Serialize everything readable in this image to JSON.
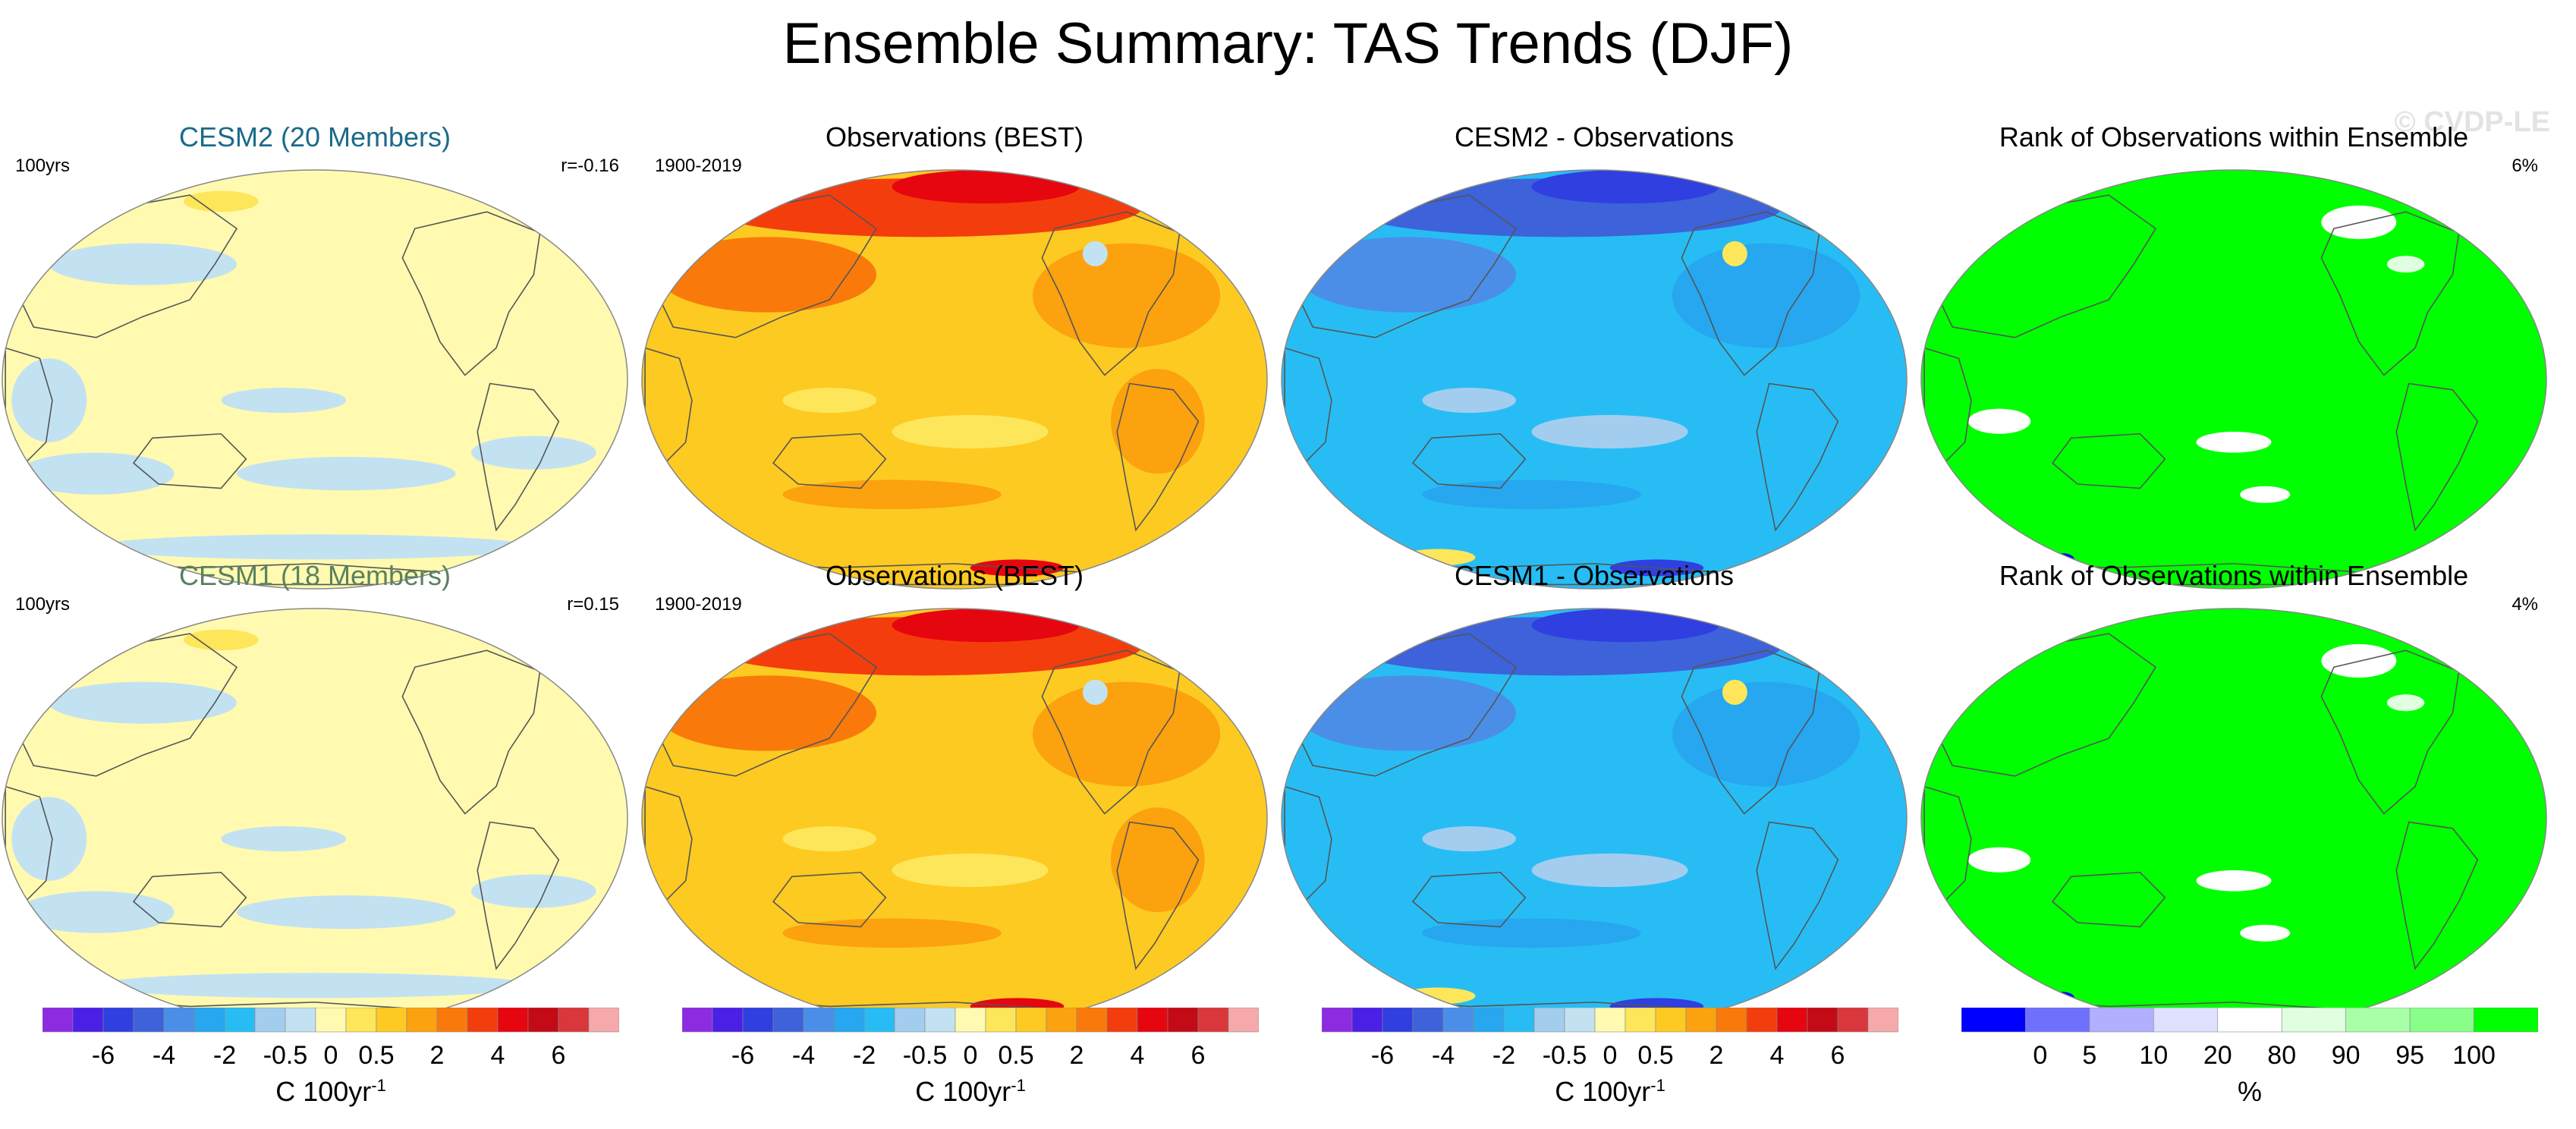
{
  "title": "Ensemble Summary: TAS Trends (DJF)",
  "watermark": "© CVDP-LE",
  "colors": {
    "trend_scale": [
      "#8d2be2",
      "#4a20e6",
      "#2f3fe0",
      "#3d62da",
      "#4b8ee8",
      "#26a7f0",
      "#27bdf4",
      "#a3cdef",
      "#c2e2f2",
      "#fffab0",
      "#fde65a",
      "#fdca22",
      "#fca20e",
      "#f97a0a",
      "#f43d0d",
      "#e6060f",
      "#c30a16",
      "#d9373b",
      "#f6a9ab"
    ],
    "rank_scale": [
      "#0000ff",
      "#7070ff",
      "#b0b0ff",
      "#e0e0ff",
      "#ffffff",
      "#e0ffe0",
      "#a8ffa8",
      "#88ff88",
      "#00ff00"
    ],
    "model_title_cesm2": "#1b6a8a",
    "model_title_cesm1": "#5a8060",
    "coast": "#555555"
  },
  "panels": [
    {
      "title": "CESM2 (20 Members)",
      "left_label": "100yrs",
      "right_label": "r=-0.16",
      "kind": "model",
      "title_color": "#1b6a8a"
    },
    {
      "title": "Observations (BEST)",
      "left_label": "1900-2019",
      "right_label": "",
      "kind": "obs"
    },
    {
      "title": "CESM2 - Observations",
      "left_label": "",
      "right_label": "",
      "kind": "diff"
    },
    {
      "title": "Rank of Observations within Ensemble",
      "left_label": "",
      "right_label": "6%",
      "kind": "rank"
    },
    {
      "title": "CESM1 (18 Members)",
      "left_label": "100yrs",
      "right_label": "r=0.15",
      "kind": "model",
      "title_color": "#5a8060"
    },
    {
      "title": "Observations (BEST)",
      "left_label": "1900-2019",
      "right_label": "",
      "kind": "obs"
    },
    {
      "title": "CESM1 - Observations",
      "left_label": "",
      "right_label": "",
      "kind": "diff"
    },
    {
      "title": "Rank of Observations within Ensemble",
      "left_label": "",
      "right_label": "4%",
      "kind": "rank"
    }
  ],
  "colorbars": [
    {
      "labels": [
        "-6",
        "-4",
        "-2",
        "-0.5",
        "0",
        "0.5",
        "2",
        "4",
        "6"
      ],
      "unit": "C 100yr",
      "unit_sup": "-1",
      "kind": "trend"
    },
    {
      "labels": [
        "-6",
        "-4",
        "-2",
        "-0.5",
        "0",
        "0.5",
        "2",
        "4",
        "6"
      ],
      "unit": "C 100yr",
      "unit_sup": "-1",
      "kind": "trend"
    },
    {
      "labels": [
        "-6",
        "-4",
        "-2",
        "-0.5",
        "0",
        "0.5",
        "2",
        "4",
        "6"
      ],
      "unit": "C 100yr",
      "unit_sup": "-1",
      "kind": "trend"
    },
    {
      "labels": [
        "0",
        "5",
        "10",
        "20",
        "80",
        "90",
        "95",
        "100"
      ],
      "unit": "%",
      "unit_sup": "",
      "kind": "rank"
    }
  ],
  "chart_data": [
    {
      "type": "heatmap",
      "title": "CESM2 (20 Members)",
      "annotations": [
        "100yrs",
        "r=-0.16"
      ],
      "projection": "Robinson",
      "fields": "tas trend DJF",
      "units": "C 100yr-1"
    },
    {
      "type": "heatmap",
      "title": "Observations (BEST)",
      "annotations": [
        "1900-2019"
      ],
      "projection": "Robinson",
      "units": "C 100yr-1"
    },
    {
      "type": "heatmap",
      "title": "CESM2 - Observations",
      "projection": "Robinson",
      "units": "C 100yr-1"
    },
    {
      "type": "heatmap",
      "title": "Rank of Observations within Ensemble",
      "annotations": [
        "6%"
      ],
      "projection": "Robinson",
      "units": "%"
    },
    {
      "type": "heatmap",
      "title": "CESM1 (18 Members)",
      "annotations": [
        "100yrs",
        "r=0.15"
      ],
      "projection": "Robinson",
      "units": "C 100yr-1"
    },
    {
      "type": "heatmap",
      "title": "Observations (BEST)",
      "annotations": [
        "1900-2019"
      ],
      "projection": "Robinson",
      "units": "C 100yr-1"
    },
    {
      "type": "heatmap",
      "title": "CESM1 - Observations",
      "projection": "Robinson",
      "units": "C 100yr-1"
    },
    {
      "type": "heatmap",
      "title": "Rank of Observations within Ensemble",
      "annotations": [
        "4%"
      ],
      "projection": "Robinson",
      "units": "%"
    }
  ]
}
